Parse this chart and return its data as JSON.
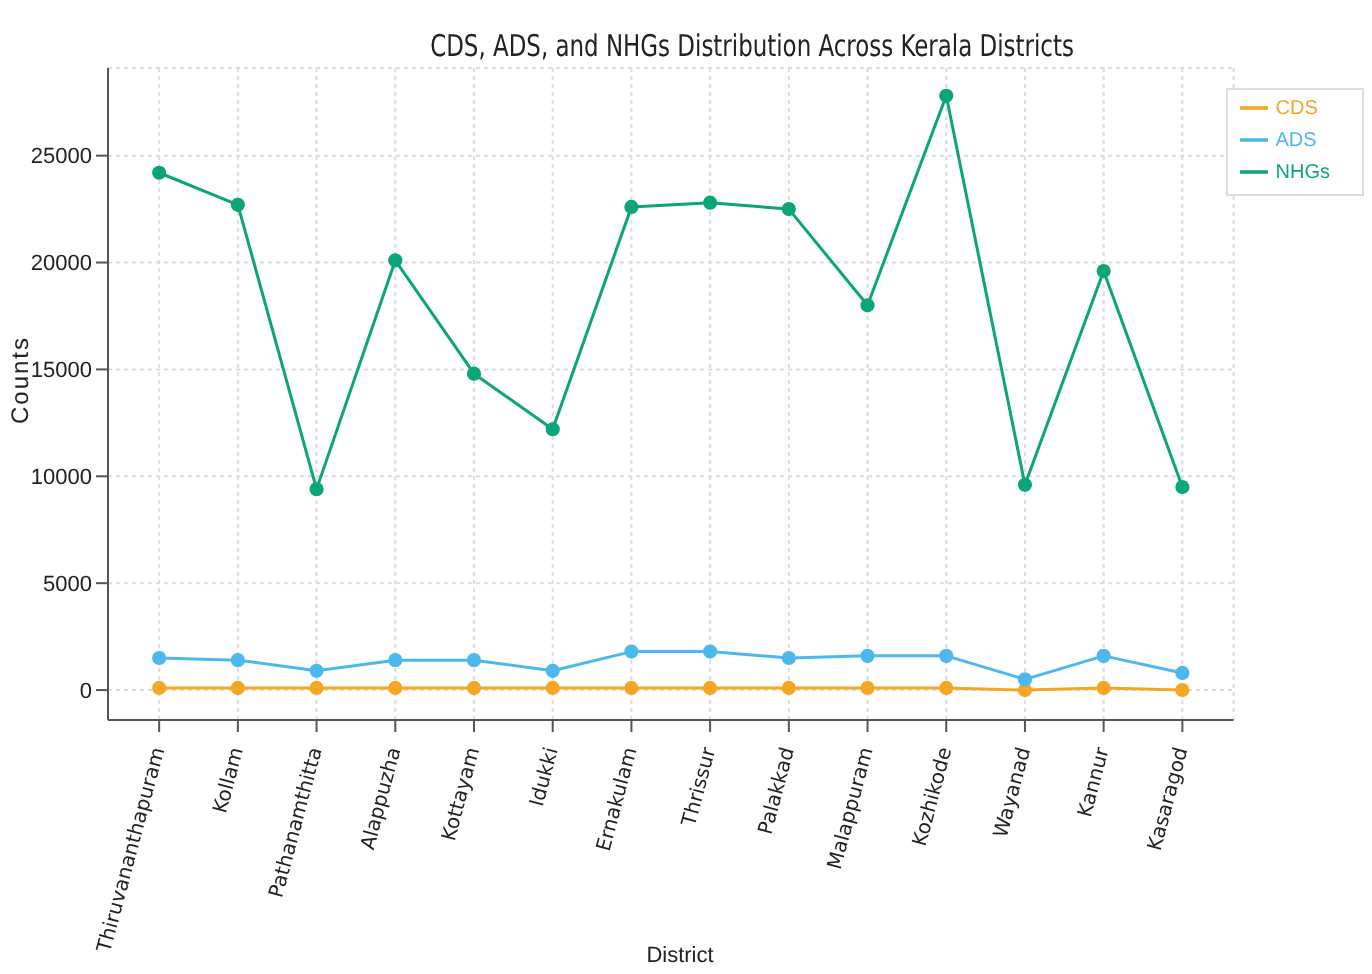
{
  "chart_data": {
    "type": "line",
    "title": "CDS, ADS, and NHGs Distribution Across Kerala Districts",
    "xlabel": "District",
    "ylabel": "Counts",
    "categories": [
      "Thiruvananthapuram",
      "Kollam",
      "Pathanamthitta",
      "Alappuzha",
      "Kottayam",
      "Idukki",
      "Ernakulam",
      "Thrissur",
      "Palakkad",
      "Malappuram",
      "Kozhikode",
      "Wayanad",
      "Kannur",
      "Kasaragod"
    ],
    "series": [
      {
        "name": "CDS",
        "color": "#f5a623",
        "values": [
          100,
          100,
          100,
          100,
          100,
          100,
          100,
          100,
          100,
          100,
          100,
          0,
          100,
          0
        ]
      },
      {
        "name": "ADS",
        "color": "#4db8ee",
        "values": [
          1500,
          1400,
          900,
          1400,
          1400,
          900,
          1800,
          1800,
          1500,
          1600,
          1600,
          500,
          1600,
          800
        ]
      },
      {
        "name": "NHGs",
        "color": "#0aa67a",
        "values": [
          24200,
          22700,
          9400,
          20100,
          14800,
          12200,
          22600,
          22800,
          22500,
          18000,
          27800,
          9600,
          19600,
          9500
        ]
      }
    ],
    "ylim": [
      -1400,
      29100
    ],
    "yticks": [
      0,
      5000,
      10000,
      15000,
      20000,
      25000
    ],
    "grid": true,
    "legend": "top right",
    "marker": "circle",
    "line_style": "solid"
  }
}
